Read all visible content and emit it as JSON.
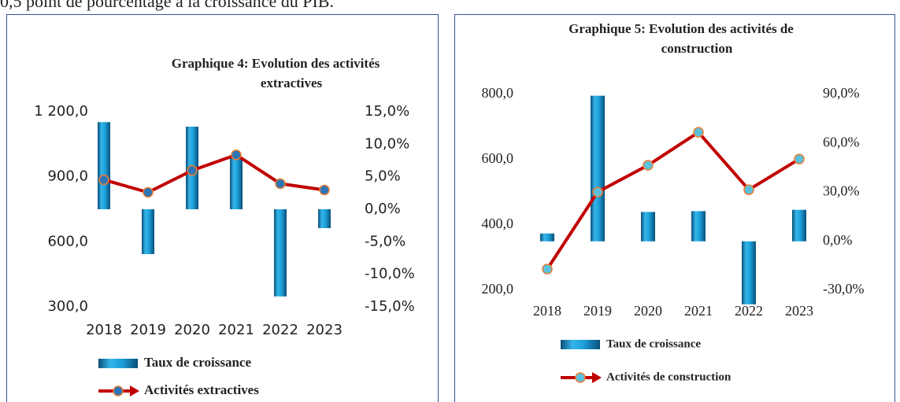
{
  "header": {
    "text": "0,5 point de pourcentage à la croissance du PIB."
  },
  "chart_data": [
    {
      "type": "bar-line",
      "title": [
        "Graphique 4: Evolution des activités",
        "extractives"
      ],
      "categories": [
        "2018",
        "2019",
        "2020",
        "2021",
        "2022",
        "2023"
      ],
      "ylim": [
        300,
        1200
      ],
      "yticks": [
        {
          "value": 300,
          "label": "300,0"
        },
        {
          "value": 600,
          "label": "600,0"
        },
        {
          "value": 900,
          "label": "900,0"
        },
        {
          "value": 1200,
          "label": "1 200,0"
        }
      ],
      "y2lim": [
        -15,
        15
      ],
      "y2ticks": [
        {
          "value": -15,
          "label": "-15,0%"
        },
        {
          "value": -10,
          "label": "-10,0%"
        },
        {
          "value": -5,
          "label": "-5,0%"
        },
        {
          "value": 0,
          "label": "0,0%"
        },
        {
          "value": 5,
          "label": "5,0%"
        },
        {
          "value": 10,
          "label": "10,0%"
        },
        {
          "value": 15,
          "label": "15,0%"
        }
      ],
      "series": [
        {
          "name": "Taux de croissance",
          "kind": "bar",
          "axis": "y2",
          "color": "#1a9ed8",
          "values": [
            13.4,
            -6.9,
            12.7,
            8.0,
            -13.4,
            -2.9
          ]
        },
        {
          "name": "Activités extractives",
          "kind": "line",
          "color": "#c00000",
          "marker_color": "#2e75b6",
          "values": [
            886,
            828,
            929,
            1001,
            868,
            839
          ]
        }
      ]
    },
    {
      "type": "bar-line",
      "title": [
        "Graphique 5: Evolution des activités de",
        "construction"
      ],
      "categories": [
        "2018",
        "2019",
        "2020",
        "2021",
        "2022",
        "2023"
      ],
      "ylim": [
        200,
        800
      ],
      "yticks": [
        {
          "value": 200,
          "label": "200,0"
        },
        {
          "value": 400,
          "label": "400,0"
        },
        {
          "value": 600,
          "label": "600,0"
        },
        {
          "value": 800,
          "label": "800,0"
        }
      ],
      "y2lim": [
        -30,
        90
      ],
      "y2ticks": [
        {
          "value": -30,
          "label": "-30,0%"
        },
        {
          "value": 0,
          "label": "0,0%"
        },
        {
          "value": 30,
          "label": "30,0%"
        },
        {
          "value": 60,
          "label": "60,0%"
        },
        {
          "value": 90,
          "label": "90,0%"
        }
      ],
      "series": [
        {
          "name": "Taux de croissance",
          "kind": "bar",
          "axis": "y2",
          "color": "#1a9ed8",
          "values": [
            4.8,
            89.2,
            18.0,
            18.5,
            -38.6,
            19.3
          ]
        },
        {
          "name": "Activités de construction",
          "kind": "line",
          "color": "#c00000",
          "marker_color": "#5bc0de",
          "values": [
            265,
            501,
            583,
            684,
            508,
            602
          ]
        }
      ]
    }
  ]
}
